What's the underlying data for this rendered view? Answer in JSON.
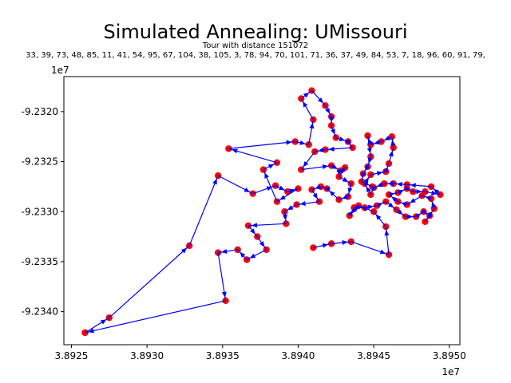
{
  "chart_data": {
    "type": "scatter",
    "title": "Simulated Annealing: UMissouri",
    "subtitle": "Tour with distance 151072",
    "tour_sequence": "33, 39, 73, 48, 85, 11, 41, 54, 95, 67, 104, 38, 105, 3, 78, 94, 70, 101, 71, 36, 37, 49, 84, 53, 7, 18, 96, 60, 91, 79,",
    "xlabel": "",
    "ylabel": "",
    "x_offset_label": "1e7",
    "y_offset_label": "1e7",
    "xlim": [
      3.89245,
      3.89507
    ],
    "ylim": [
      -9.23433,
      -9.23165
    ],
    "xticks": [
      3.8925,
      3.893,
      3.8935,
      3.894,
      3.8945,
      3.895
    ],
    "xtick_labels": [
      "3.8925",
      "3.8930",
      "3.8935",
      "3.8940",
      "3.8945",
      "3.8950"
    ],
    "yticks": [
      -9.234,
      -9.2335,
      -9.233,
      -9.2325,
      -9.232
    ],
    "ytick_labels": [
      "-9.2340",
      "-9.2335",
      "-9.2330",
      "-9.2325",
      "-9.2320"
    ],
    "grid": false,
    "point_color": "#ff0000",
    "line_color": "#0000ff",
    "tour": [
      [
        3.89259,
        -9.23421
      ],
      [
        3.89275,
        -9.23406
      ],
      [
        3.89328,
        -9.23334
      ],
      [
        3.89347,
        -9.23264
      ],
      [
        3.8937,
        -9.23282
      ],
      [
        3.89385,
        -9.23274
      ],
      [
        3.89393,
        -9.2328
      ],
      [
        3.894,
        -9.23277
      ],
      [
        3.89386,
        -9.2329
      ],
      [
        3.89377,
        -9.23258
      ],
      [
        3.89386,
        -9.23251
      ],
      [
        3.89354,
        -9.23237
      ],
      [
        3.89398,
        -9.2323
      ],
      [
        3.89407,
        -9.23233
      ],
      [
        3.8941,
        -9.23208
      ],
      [
        3.89402,
        -9.23187
      ],
      [
        3.89409,
        -9.23179
      ],
      [
        3.89418,
        -9.23194
      ],
      [
        3.89422,
        -9.23205
      ],
      [
        3.89422,
        -9.23214
      ],
      [
        3.89425,
        -9.23226
      ],
      [
        3.89433,
        -9.2323
      ],
      [
        3.89436,
        -9.23236
      ],
      [
        3.89418,
        -9.23238
      ],
      [
        3.89411,
        -9.2324
      ],
      [
        3.89402,
        -9.23258
      ],
      [
        3.89422,
        -9.23254
      ],
      [
        3.89428,
        -9.23259
      ],
      [
        3.89431,
        -9.23256
      ],
      [
        3.89427,
        -9.23265
      ],
      [
        3.89435,
        -9.23272
      ],
      [
        3.89433,
        -9.23285
      ],
      [
        3.89427,
        -9.23288
      ],
      [
        3.89419,
        -9.23277
      ],
      [
        3.89415,
        -9.23275
      ],
      [
        3.89409,
        -9.23278
      ],
      [
        3.89414,
        -9.2329
      ],
      [
        3.89399,
        -9.23293
      ],
      [
        3.89391,
        -9.233
      ],
      [
        3.89392,
        -9.23312
      ],
      [
        3.89367,
        -9.23314
      ],
      [
        3.89373,
        -9.23325
      ],
      [
        3.89379,
        -9.23338
      ],
      [
        3.89366,
        -9.23348
      ],
      [
        3.8936,
        -9.23338
      ],
      [
        3.89347,
        -9.23341
      ],
      [
        3.89352,
        -9.23389
      ],
      [
        3.89259,
        -9.23421
      ]
    ],
    "tour2": [
      [
        3.8941,
        -9.23336
      ],
      [
        3.89422,
        -9.23332
      ],
      [
        3.89435,
        -9.2333
      ],
      [
        3.8946,
        -9.23343
      ],
      [
        3.89458,
        -9.23315
      ],
      [
        3.8945,
        -9.233
      ],
      [
        3.8944,
        -9.23294
      ],
      [
        3.89434,
        -9.23304
      ],
      [
        3.89437,
        -9.23296
      ],
      [
        3.89444,
        -9.23296
      ],
      [
        3.89452,
        -9.23294
      ],
      [
        3.89458,
        -9.2329
      ],
      [
        3.89465,
        -9.23298
      ],
      [
        3.89471,
        -9.23305
      ],
      [
        3.89478,
        -9.23305
      ],
      [
        3.89483,
        -9.233
      ],
      [
        3.89487,
        -9.23304
      ],
      [
        3.89484,
        -9.2331
      ],
      [
        3.8949,
        -9.23297
      ],
      [
        3.89488,
        -9.23287
      ],
      [
        3.89482,
        -9.23284
      ],
      [
        3.89472,
        -9.23293
      ],
      [
        3.89466,
        -9.2329
      ],
      [
        3.8946,
        -9.23283
      ],
      [
        3.89466,
        -9.23281
      ],
      [
        3.89472,
        -9.23277
      ],
      [
        3.89476,
        -9.2328
      ],
      [
        3.89484,
        -9.2328
      ],
      [
        3.89494,
        -9.23283
      ],
      [
        3.89488,
        -9.23275
      ],
      [
        3.89472,
        -9.23273
      ],
      [
        3.89463,
        -9.23272
      ],
      [
        3.89457,
        -9.23272
      ],
      [
        3.8945,
        -9.23276
      ],
      [
        3.89448,
        -9.23283
      ],
      [
        3.89444,
        -9.23272
      ],
      [
        3.89448,
        -9.23263
      ],
      [
        3.89458,
        -9.2326
      ],
      [
        3.8946,
        -9.23252
      ],
      [
        3.89463,
        -9.23236
      ],
      [
        3.89462,
        -9.23225
      ],
      [
        3.89455,
        -9.2323
      ],
      [
        3.89448,
        -9.23233
      ],
      [
        3.89446,
        -9.23224
      ],
      [
        3.89448,
        -9.23245
      ],
      [
        3.89446,
        -9.23255
      ],
      [
        3.89443,
        -9.23262
      ],
      [
        3.89442,
        -9.2327
      ],
      [
        3.89449,
        -9.23275
      ]
    ]
  }
}
